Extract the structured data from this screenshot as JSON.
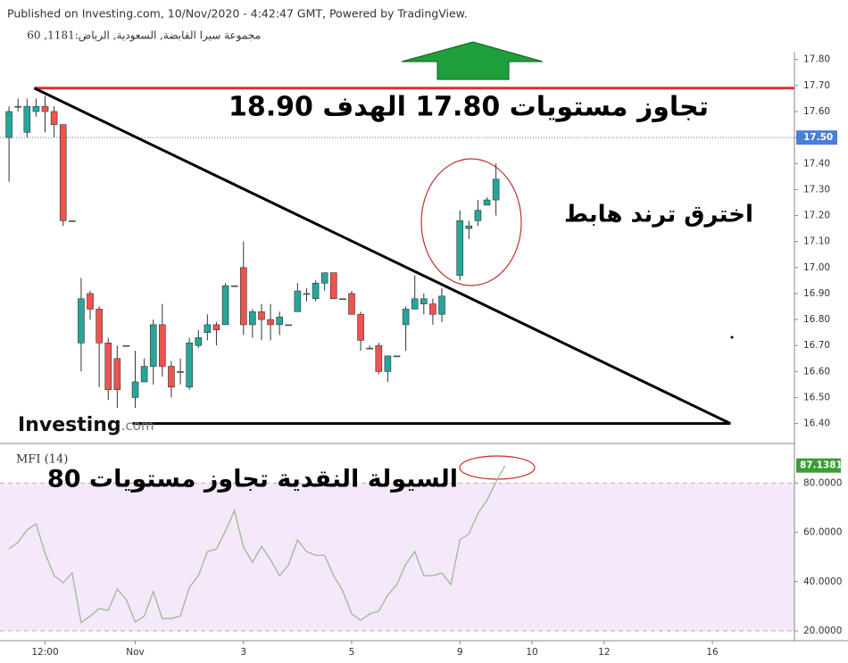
{
  "chart_data": {
    "type": "candlestick",
    "header": "Published on Investing.com, 10/Nov/2020 - 4:42:47 GMT, Powered by TradingView.",
    "symbol": "مجموعة سيرا القابضة, السعودية, الرياض:1181, 60",
    "logo": "Investing",
    "logo_suffix": ".com",
    "xlim": [
      -1,
      87.1
    ],
    "xticks": [
      {
        "value": 4,
        "label": "12:00"
      },
      {
        "value": 14,
        "label": "Nov"
      },
      {
        "value": 26,
        "label": "3"
      },
      {
        "value": 38,
        "label": "5"
      },
      {
        "value": 50,
        "label": "9"
      },
      {
        "value": 58,
        "label": "10"
      },
      {
        "value": 66,
        "label": "12"
      },
      {
        "value": 78,
        "label": "16"
      }
    ],
    "ylim": [
      16.33,
      17.83
    ],
    "yticks": [
      {
        "value": 16.4,
        "label": "16.40"
      },
      {
        "value": 16.5,
        "label": "16.50"
      },
      {
        "value": 16.6,
        "label": "16.60"
      },
      {
        "value": 16.7,
        "label": "16.70"
      },
      {
        "value": 16.8,
        "label": "16.80"
      },
      {
        "value": 16.9,
        "label": "16.90"
      },
      {
        "value": 17.0,
        "label": "17.00"
      },
      {
        "value": 17.1,
        "label": "17.10"
      },
      {
        "value": 17.2,
        "label": "17.20"
      },
      {
        "value": 17.3,
        "label": "17.30"
      },
      {
        "value": 17.4,
        "label": "17.40"
      },
      {
        "value": 17.5,
        "label": "17.50"
      },
      {
        "value": 17.6,
        "label": "17.60"
      },
      {
        "value": 17.7,
        "label": "17.70"
      },
      {
        "value": 17.8,
        "label": "17.80"
      }
    ],
    "up_color": "#26a69a",
    "down_color": "#ef5350",
    "last_price": {
      "value": 17.5,
      "label": "17.50",
      "color": "#4a7fd6"
    },
    "candles": {
      "x": [
        0,
        1,
        2,
        3,
        4,
        5,
        6,
        7,
        8,
        9,
        10,
        11,
        12,
        13,
        14,
        15,
        16,
        17,
        18,
        19,
        20,
        21,
        22,
        23,
        24,
        25,
        26,
        27,
        28,
        29,
        30,
        31,
        32,
        33,
        34,
        35,
        36,
        37,
        38,
        39,
        40,
        41,
        42,
        43,
        44,
        45,
        46,
        47,
        48,
        50,
        51,
        52,
        53,
        54
      ],
      "open": [
        17.5,
        17.62,
        17.52,
        17.6,
        17.62,
        17.6,
        17.55,
        17.18,
        16.71,
        16.9,
        16.84,
        16.71,
        16.65,
        16.7,
        16.5,
        16.56,
        16.62,
        16.78,
        16.62,
        16.6,
        16.54,
        16.7,
        16.75,
        16.78,
        16.78,
        16.93,
        17.0,
        16.78,
        16.83,
        16.8,
        16.78,
        16.78,
        16.83,
        16.9,
        16.88,
        16.94,
        16.98,
        16.88,
        16.9,
        16.82,
        16.69,
        16.7,
        16.6,
        16.66,
        16.78,
        16.84,
        16.86,
        16.86,
        16.82,
        16.97,
        17.15,
        17.18,
        17.24,
        17.26
      ],
      "high": [
        17.62,
        17.65,
        17.65,
        17.65,
        17.66,
        17.62,
        17.55,
        17.18,
        16.96,
        16.91,
        16.85,
        16.73,
        16.7,
        16.7,
        16.68,
        16.65,
        16.8,
        16.86,
        16.64,
        16.65,
        16.73,
        16.76,
        16.82,
        16.79,
        16.94,
        16.93,
        17.1,
        16.84,
        16.86,
        16.86,
        16.83,
        16.78,
        16.94,
        16.92,
        16.95,
        16.98,
        16.98,
        16.88,
        16.91,
        16.83,
        16.7,
        16.71,
        16.66,
        16.66,
        16.85,
        16.97,
        16.9,
        16.88,
        16.92,
        17.22,
        17.18,
        17.26,
        17.27,
        17.4
      ],
      "low": [
        17.33,
        17.6,
        17.5,
        17.58,
        17.52,
        17.5,
        17.16,
        17.18,
        16.6,
        16.8,
        16.54,
        16.49,
        16.46,
        16.7,
        16.46,
        16.56,
        16.55,
        16.58,
        16.5,
        16.55,
        16.53,
        16.69,
        16.72,
        16.7,
        16.78,
        16.93,
        16.74,
        16.73,
        16.72,
        16.72,
        16.74,
        16.78,
        16.83,
        16.87,
        16.87,
        16.91,
        16.88,
        16.88,
        16.82,
        16.68,
        16.69,
        16.59,
        16.56,
        16.66,
        16.68,
        16.84,
        16.82,
        16.78,
        16.79,
        16.95,
        17.11,
        17.16,
        17.24,
        17.2
      ],
      "close": [
        17.6,
        17.62,
        17.62,
        17.62,
        17.6,
        17.55,
        17.18,
        17.18,
        16.88,
        16.84,
        16.71,
        16.53,
        16.53,
        16.7,
        16.56,
        16.62,
        16.78,
        16.62,
        16.54,
        16.6,
        16.71,
        16.73,
        16.78,
        16.76,
        16.93,
        16.93,
        16.78,
        16.83,
        16.8,
        16.78,
        16.81,
        16.78,
        16.91,
        16.9,
        16.94,
        16.98,
        16.88,
        16.88,
        16.82,
        16.72,
        16.69,
        16.6,
        16.66,
        16.66,
        16.84,
        16.88,
        16.88,
        16.82,
        16.89,
        17.18,
        17.16,
        17.22,
        17.26,
        17.34
      ]
    },
    "drawings": [
      {
        "color": "#e03030",
        "x": [
          2.8,
          87.1
        ],
        "y": [
          17.69,
          17.69
        ]
      },
      {
        "color": "#000000",
        "x": [
          2.8,
          80
        ],
        "y": [
          17.69,
          16.4
        ]
      },
      {
        "color": "#000000",
        "x": [
          13.7,
          80
        ],
        "y": [
          16.4,
          16.4
        ]
      }
    ],
    "annotations": [
      "تجاوز مستويات 17.80 الهدف 18.90",
      "اخترق ترند هابط",
      "السيولة النقدية تجاوز مستويات 80"
    ],
    "mfi": {
      "name": "MFI (14)",
      "color": "#9fb890",
      "label_color": "#3a9e35",
      "band_color": "#f4e8fb",
      "band": [
        20,
        80
      ],
      "ylim": [
        16,
        95
      ],
      "yticks": [
        {
          "value": 20,
          "label": "20.0000"
        },
        {
          "value": 40,
          "label": "40.0000"
        },
        {
          "value": 60,
          "label": "60.0000"
        },
        {
          "value": 80,
          "label": "80.0000"
        }
      ],
      "x": [
        0,
        1,
        2,
        3,
        4,
        5,
        6,
        7,
        8,
        9,
        10,
        11,
        12,
        13,
        14,
        15,
        16,
        17,
        18,
        19,
        20,
        21,
        22,
        23,
        24,
        25,
        26,
        27,
        28,
        29,
        30,
        31,
        32,
        33,
        34,
        35,
        36,
        37,
        38,
        39,
        40,
        41,
        42,
        43,
        44,
        45,
        46,
        47,
        48,
        49,
        50,
        51,
        52,
        53,
        54,
        55
      ],
      "values": [
        53.3,
        56,
        61,
        63.4,
        51.5,
        42.4,
        39.5,
        43.5,
        23.3,
        26,
        29,
        28.3,
        37,
        32.7,
        23.6,
        26,
        36,
        25,
        25,
        26,
        37.7,
        42.4,
        52.2,
        53.3,
        60.5,
        68.8,
        54,
        47.8,
        54.3,
        48.9,
        42.4,
        46.8,
        56.9,
        52.2,
        50.7,
        50.7,
        42.4,
        36.3,
        26.9,
        24.3,
        26.9,
        28,
        34.5,
        38.8,
        47.1,
        52.2,
        42.4,
        42.4,
        43.5,
        38.8,
        56.9,
        59.4,
        67.7,
        73,
        80.4,
        87.1381
      ],
      "last_label": "87.1381"
    }
  }
}
